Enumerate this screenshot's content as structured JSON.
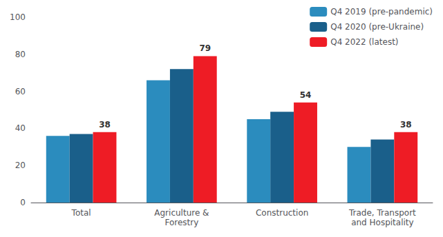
{
  "chart_data": {
    "type": "bar",
    "categories": [
      "Total",
      "Agriculture &\nForestry",
      "Construction",
      "Trade, Transport\nand Hospitality"
    ],
    "series": [
      {
        "name": "Q4 2019 (pre-pandemic)",
        "color": "#2b8cbe",
        "values": [
          36,
          66,
          45,
          30
        ]
      },
      {
        "name": "Q4 2020 (pre-Ukraine)",
        "color": "#1a5f8a",
        "values": [
          37,
          72,
          49,
          34
        ]
      },
      {
        "name": "Q4 2022 (latest)",
        "color": "#ee1c25",
        "values": [
          38,
          79,
          54,
          38
        ],
        "data_labels": true
      }
    ],
    "ylim": [
      0,
      100
    ],
    "yticks": [
      0,
      20,
      40,
      60,
      80,
      100
    ],
    "grid": false,
    "legend": "upper right"
  }
}
